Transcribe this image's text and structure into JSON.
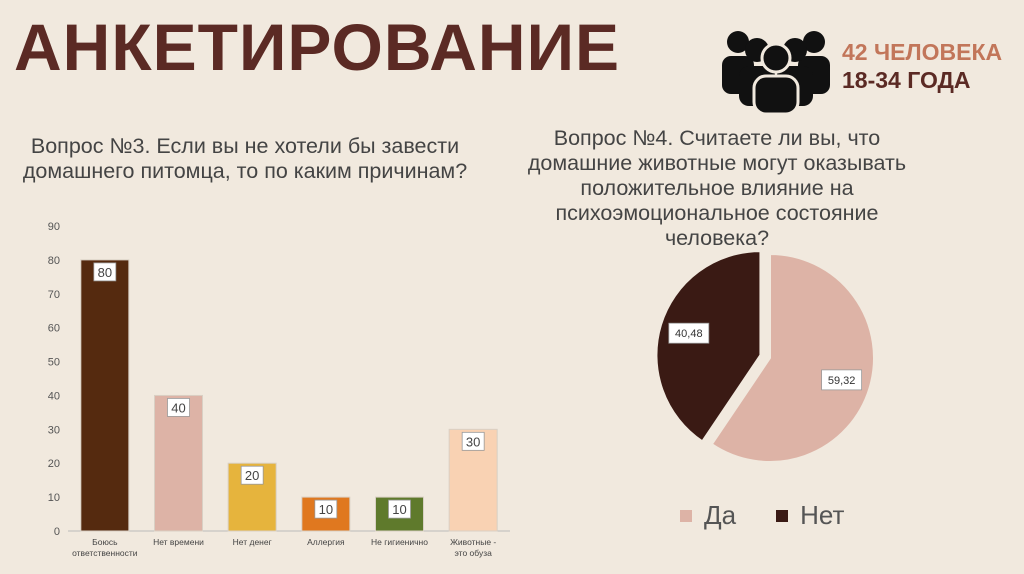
{
  "header": {
    "title": "АНКЕТИРОВАНИЕ",
    "meta_line1": "42 ЧЕЛОВЕКА",
    "meta_line2": "18-34 ГОДА",
    "icon": "people-group-icon"
  },
  "questions": {
    "q3": "Вопрос №3. Если вы не хотели бы завести домашнего питомца, то по каким причинам?",
    "q4": "Вопрос №4. Считаете ли вы, что домашние животные могут оказывать положительное влияние на психоэмоциональное состояние человека?"
  },
  "chart_data": [
    {
      "type": "bar",
      "title": "",
      "categories": [
        "Боюсь ответственности",
        "Нет времени",
        "Нет денег",
        "Аллергия",
        "Не гигиенично",
        "Животные - это обуза"
      ],
      "values": [
        80,
        40,
        20,
        10,
        10,
        30
      ],
      "colors": [
        "#552a0f",
        "#ddb3a6",
        "#e6b43d",
        "#e0781f",
        "#5f7a2c",
        "#f9d2b3"
      ],
      "ylim": [
        0,
        90
      ],
      "yticks": [
        0,
        10,
        20,
        30,
        40,
        50,
        60,
        70,
        80,
        90
      ],
      "grid": false,
      "data_labels": true
    },
    {
      "type": "pie",
      "title": "",
      "labels": [
        "Да",
        "Нет"
      ],
      "values": [
        59.32,
        40.48
      ],
      "value_labels": [
        "59,32",
        "40,48"
      ],
      "colors": [
        "#ddb3a6",
        "#3a1a14"
      ],
      "legend": "bottom"
    }
  ]
}
